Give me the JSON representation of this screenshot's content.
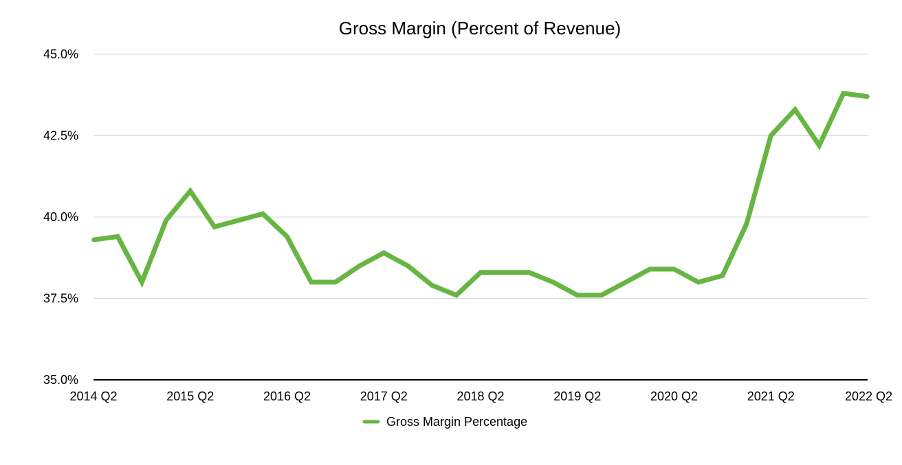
{
  "chart_data": {
    "type": "line",
    "title": "Gross Margin (Percent of Revenue)",
    "xlabel": "",
    "ylabel": "",
    "ylim": [
      35.0,
      45.0
    ],
    "yticks": [
      "35.0%",
      "37.5%",
      "40.0%",
      "42.5%",
      "45.0%"
    ],
    "ytick_values": [
      35.0,
      37.5,
      40.0,
      42.5,
      45.0
    ],
    "xtick_labels": [
      "2014 Q2",
      "2015 Q2",
      "2016 Q2",
      "2017 Q2",
      "2018 Q2",
      "2019 Q2",
      "2020 Q2",
      "2021 Q2",
      "2022 Q2"
    ],
    "grid": true,
    "legend": "bottom",
    "x": [
      "2014 Q2",
      "2014 Q3",
      "2014 Q4",
      "2015 Q1",
      "2015 Q2",
      "2015 Q3",
      "2015 Q4",
      "2016 Q1",
      "2016 Q2",
      "2016 Q3",
      "2016 Q4",
      "2017 Q1",
      "2017 Q2",
      "2017 Q3",
      "2017 Q4",
      "2018 Q1",
      "2018 Q2",
      "2018 Q3",
      "2018 Q4",
      "2019 Q1",
      "2019 Q2",
      "2019 Q3",
      "2019 Q4",
      "2020 Q1",
      "2020 Q2",
      "2020 Q3",
      "2020 Q4",
      "2021 Q1",
      "2021 Q2",
      "2021 Q3",
      "2021 Q4",
      "2022 Q1",
      "2022 Q2"
    ],
    "series": [
      {
        "name": "Gross Margin Percentage",
        "color": "#67b543",
        "values": [
          39.3,
          39.4,
          38.0,
          39.9,
          40.8,
          39.7,
          39.9,
          40.1,
          39.4,
          38.0,
          38.0,
          38.5,
          38.9,
          38.5,
          37.9,
          37.6,
          38.3,
          38.3,
          38.3,
          38.0,
          37.6,
          37.6,
          38.0,
          38.4,
          38.4,
          38.0,
          38.2,
          39.8,
          42.5,
          43.3,
          42.2,
          43.8,
          43.7
        ]
      }
    ]
  }
}
